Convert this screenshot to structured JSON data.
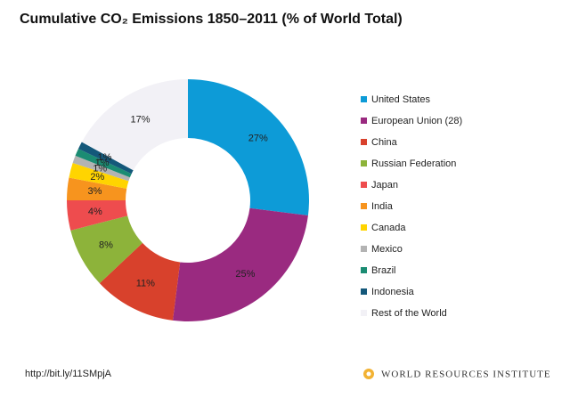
{
  "chart_data": {
    "type": "donut",
    "title": "Cumulative CO₂ Emissions 1850–2011 (% of World Total)",
    "categories": [
      "United States",
      "European Union (28)",
      "China",
      "Russian Federation",
      "Japan",
      "India",
      "Canada",
      "Mexico",
      "Brazil",
      "Indonesia",
      "Rest of the World"
    ],
    "values": [
      27,
      25,
      11,
      8,
      4,
      3,
      2,
      1,
      1,
      1,
      17
    ],
    "value_labels": [
      "27%",
      "25%",
      "11%",
      "8%",
      "4%",
      "3%",
      "2%",
      "1%",
      "1%",
      "1%",
      "17%"
    ],
    "colors": [
      "#0d9bd7",
      "#9a2a80",
      "#d8412c",
      "#8db33a",
      "#ee4c4e",
      "#f7941e",
      "#ffd400",
      "#b3b3b3",
      "#1b8c73",
      "#14587a",
      "#f2f1f6"
    ],
    "legend": "right",
    "source": "http://bit.ly/11SMpjA",
    "credit": "WORLD RESOURCES INSTITUTE"
  }
}
